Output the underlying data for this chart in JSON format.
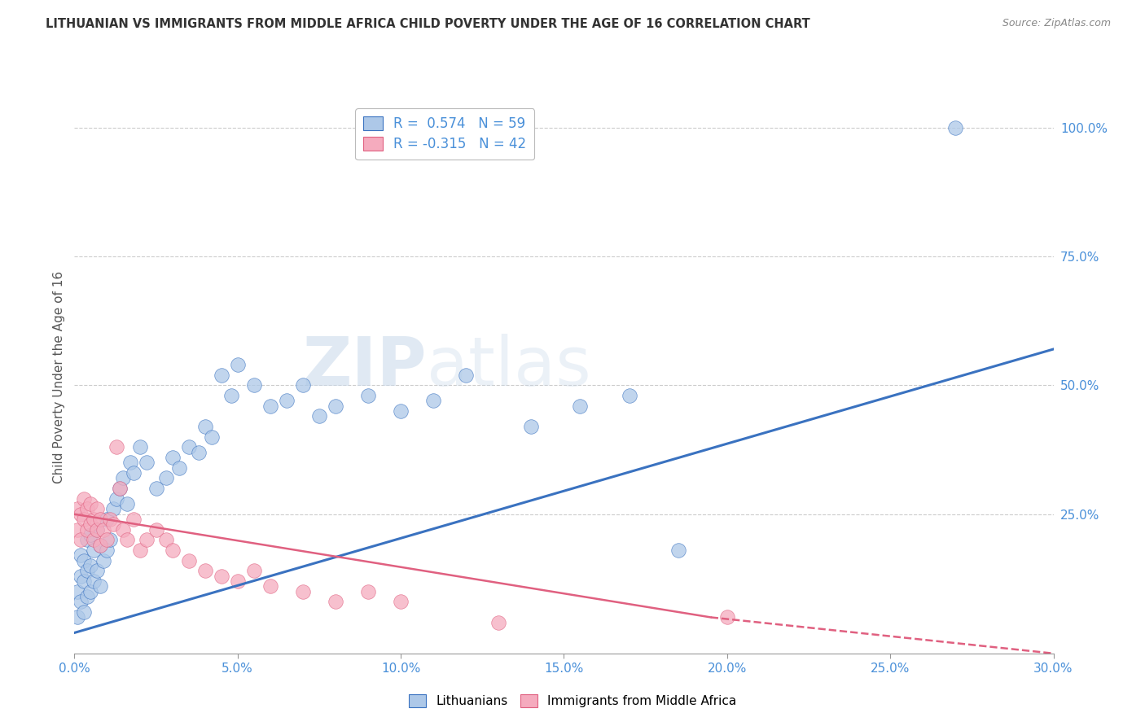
{
  "title": "LITHUANIAN VS IMMIGRANTS FROM MIDDLE AFRICA CHILD POVERTY UNDER THE AGE OF 16 CORRELATION CHART",
  "source": "Source: ZipAtlas.com",
  "ylabel": "Child Poverty Under the Age of 16",
  "xlim": [
    0.0,
    0.3
  ],
  "ylim": [
    -0.02,
    1.05
  ],
  "xtick_labels": [
    "0.0%",
    "5.0%",
    "10.0%",
    "15.0%",
    "20.0%",
    "25.0%",
    "30.0%"
  ],
  "xtick_values": [
    0.0,
    0.05,
    0.1,
    0.15,
    0.2,
    0.25,
    0.3
  ],
  "ytick_labels": [
    "100.0%",
    "75.0%",
    "50.0%",
    "25.0%"
  ],
  "ytick_values": [
    1.0,
    0.75,
    0.5,
    0.25
  ],
  "watermark_zip": "ZIP",
  "watermark_atlas": "atlas",
  "r_blue": 0.574,
  "n_blue": 59,
  "r_pink": -0.315,
  "n_pink": 42,
  "blue_color": "#adc8e8",
  "pink_color": "#f5abbe",
  "blue_line_color": "#3a72c0",
  "pink_line_color": "#e06080",
  "legend_blue_label": "R =  0.574   N = 59",
  "legend_pink_label": "R = -0.315   N = 42",
  "blue_points_x": [
    0.001,
    0.001,
    0.002,
    0.002,
    0.002,
    0.003,
    0.003,
    0.003,
    0.004,
    0.004,
    0.004,
    0.005,
    0.005,
    0.005,
    0.006,
    0.006,
    0.007,
    0.007,
    0.008,
    0.008,
    0.009,
    0.01,
    0.01,
    0.011,
    0.012,
    0.013,
    0.014,
    0.015,
    0.016,
    0.017,
    0.018,
    0.02,
    0.022,
    0.025,
    0.028,
    0.03,
    0.032,
    0.035,
    0.038,
    0.04,
    0.042,
    0.045,
    0.048,
    0.05,
    0.055,
    0.06,
    0.065,
    0.07,
    0.075,
    0.08,
    0.09,
    0.1,
    0.11,
    0.12,
    0.14,
    0.155,
    0.17,
    0.185,
    0.27
  ],
  "blue_points_y": [
    0.05,
    0.1,
    0.08,
    0.13,
    0.17,
    0.06,
    0.12,
    0.16,
    0.09,
    0.14,
    0.2,
    0.1,
    0.15,
    0.21,
    0.12,
    0.18,
    0.14,
    0.22,
    0.11,
    0.19,
    0.16,
    0.18,
    0.24,
    0.2,
    0.26,
    0.28,
    0.3,
    0.32,
    0.27,
    0.35,
    0.33,
    0.38,
    0.35,
    0.3,
    0.32,
    0.36,
    0.34,
    0.38,
    0.37,
    0.42,
    0.4,
    0.52,
    0.48,
    0.54,
    0.5,
    0.46,
    0.47,
    0.5,
    0.44,
    0.46,
    0.48,
    0.45,
    0.47,
    0.52,
    0.42,
    0.46,
    0.48,
    0.18,
    1.0
  ],
  "pink_points_x": [
    0.001,
    0.001,
    0.002,
    0.002,
    0.003,
    0.003,
    0.004,
    0.004,
    0.005,
    0.005,
    0.006,
    0.006,
    0.007,
    0.007,
    0.008,
    0.008,
    0.009,
    0.01,
    0.011,
    0.012,
    0.013,
    0.014,
    0.015,
    0.016,
    0.018,
    0.02,
    0.022,
    0.025,
    0.028,
    0.03,
    0.035,
    0.04,
    0.045,
    0.05,
    0.055,
    0.06,
    0.07,
    0.08,
    0.09,
    0.1,
    0.13,
    0.2
  ],
  "pink_points_y": [
    0.22,
    0.26,
    0.2,
    0.25,
    0.24,
    0.28,
    0.22,
    0.26,
    0.23,
    0.27,
    0.2,
    0.24,
    0.22,
    0.26,
    0.19,
    0.24,
    0.22,
    0.2,
    0.24,
    0.23,
    0.38,
    0.3,
    0.22,
    0.2,
    0.24,
    0.18,
    0.2,
    0.22,
    0.2,
    0.18,
    0.16,
    0.14,
    0.13,
    0.12,
    0.14,
    0.11,
    0.1,
    0.08,
    0.1,
    0.08,
    0.04,
    0.05
  ],
  "blue_line_x0": 0.0,
  "blue_line_y0": 0.02,
  "blue_line_x1": 0.3,
  "blue_line_y1": 0.57,
  "pink_line_x0": 0.0,
  "pink_line_y0": 0.25,
  "pink_line_x1": 0.195,
  "pink_line_y1": 0.05,
  "pink_line_dash_x0": 0.195,
  "pink_line_dash_y0": 0.05,
  "pink_line_dash_x1": 0.3,
  "pink_line_dash_y1": -0.02
}
